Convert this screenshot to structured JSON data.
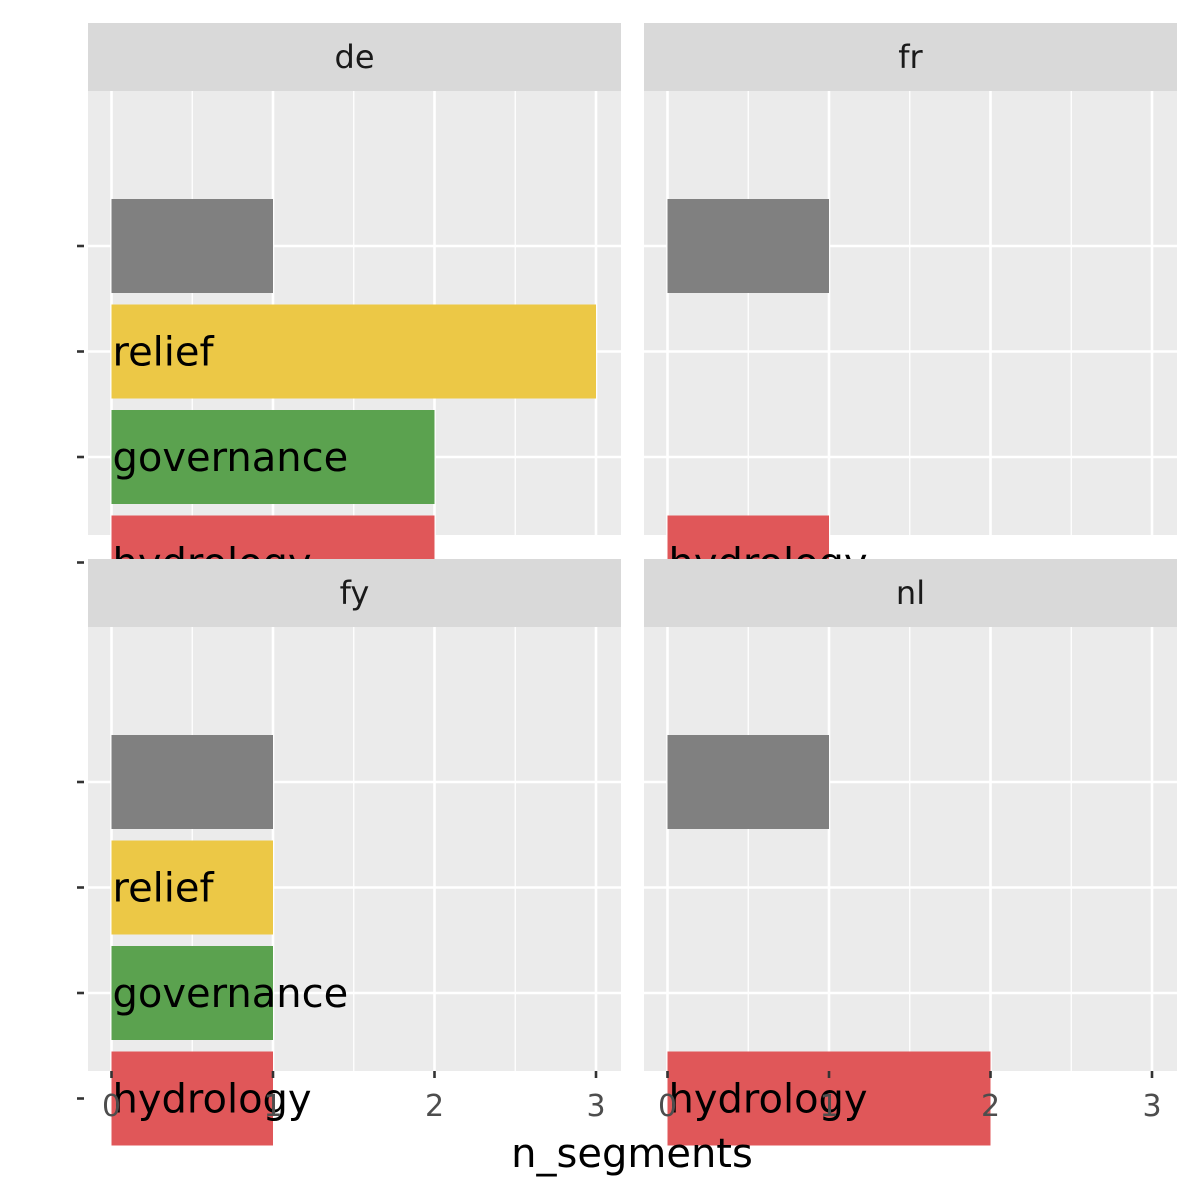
{
  "chart_data": {
    "type": "bar",
    "orientation": "horizontal",
    "facet_layout": "2x2",
    "xlabel": "n_segments",
    "ylabel": "",
    "xlim": [
      0,
      3
    ],
    "x_ticks": [
      "0",
      "1",
      "2",
      "3"
    ],
    "grid": true,
    "legend": "none",
    "y_tick_labels": [
      "",
      "",
      "",
      ""
    ],
    "category_colors": {
      "": "#808080",
      "relief": "#ECC846",
      "governance": "#5BA24F",
      "hydrology": "#E05759"
    },
    "panels": [
      {
        "facet": "de",
        "bars": [
          {
            "label": "",
            "value": 1
          },
          {
            "label": "relief",
            "value": 3
          },
          {
            "label": "governance",
            "value": 2
          },
          {
            "label": "hydrology",
            "value": 2
          }
        ]
      },
      {
        "facet": "fr",
        "bars": [
          {
            "label": "",
            "value": 1
          },
          {
            "label": "hydrology",
            "value": 1
          }
        ]
      },
      {
        "facet": "fy",
        "bars": [
          {
            "label": "",
            "value": 1
          },
          {
            "label": "relief",
            "value": 1
          },
          {
            "label": "governance",
            "value": 1
          },
          {
            "label": "hydrology",
            "value": 1
          }
        ]
      },
      {
        "facet": "nl",
        "bars": [
          {
            "label": "",
            "value": 1
          },
          {
            "label": "hydrology",
            "value": 2
          }
        ]
      }
    ]
  }
}
